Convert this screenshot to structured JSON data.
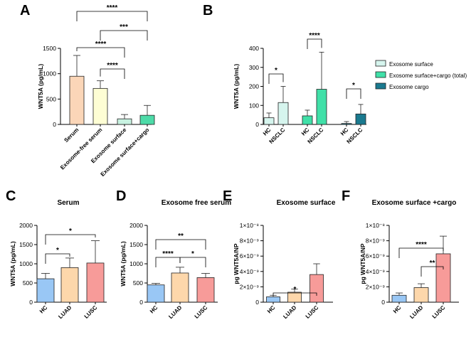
{
  "chart_data": [
    {
      "id": "A",
      "panel_label": "A",
      "type": "bar",
      "title": "",
      "ylabel": "WNT5A (pg/mL)",
      "ylim": [
        0,
        1500
      ],
      "yticks": [
        "0",
        "500",
        "1000",
        "1500"
      ],
      "categories": [
        "Serum",
        "Exosome-free serum",
        "Exosome surface",
        "Exosome surface+cargo"
      ],
      "values": [
        950,
        710,
        110,
        180
      ],
      "errors": [
        410,
        150,
        85,
        195
      ],
      "colors": [
        "#fbd6b8",
        "#fefed4",
        "#c8f2e1",
        "#4ddba8"
      ],
      "significance": [
        {
          "from": 0,
          "to": 3,
          "label": "****"
        },
        {
          "from": 1,
          "to": 3,
          "label": "***"
        },
        {
          "from": 0,
          "to": 2,
          "label": "****"
        },
        {
          "from": 1,
          "to": 2,
          "label": "****"
        }
      ]
    },
    {
      "id": "B",
      "panel_label": "B",
      "type": "bar",
      "title": "",
      "ylabel": "WNT5A (pg/mL)",
      "ylim": [
        0,
        400
      ],
      "yticks": [
        "0",
        "100",
        "200",
        "300",
        "400"
      ],
      "categories": [
        "HC",
        "NSCLC",
        "HC",
        "NSCLC",
        "HC",
        "NSCLC"
      ],
      "groups": [
        [
          0,
          1
        ],
        [
          2,
          3
        ],
        [
          4,
          5
        ]
      ],
      "values": [
        35,
        115,
        45,
        185,
        5,
        55
      ],
      "errors": [
        25,
        85,
        30,
        195,
        10,
        50
      ],
      "colors": [
        "#d6f5ee",
        "#d6f5ee",
        "#40e0a8",
        "#40e0a8",
        "#1a7a8f",
        "#1a7a8f"
      ],
      "legend": [
        {
          "label": "Exosome surface",
          "color": "#d6f5ee"
        },
        {
          "label": "Exosome surface+cargo (total)",
          "color": "#40e0a8"
        },
        {
          "label": "Exosome cargo",
          "color": "#1a7a8f"
        }
      ],
      "significance": [
        {
          "from": 0,
          "to": 1,
          "label": "*"
        },
        {
          "from": 2,
          "to": 3,
          "label": "****"
        },
        {
          "from": 4,
          "to": 5,
          "label": "*"
        }
      ]
    },
    {
      "id": "C",
      "panel_label": "C",
      "type": "bar",
      "title": "Serum",
      "ylabel": "WNT5A (pg/mL)",
      "ylim": [
        0,
        2000
      ],
      "yticks": [
        "0",
        "500",
        "1000",
        "1500",
        "2000"
      ],
      "categories": [
        "HC",
        "LUAD",
        "LUSC"
      ],
      "values": [
        610,
        900,
        1020
      ],
      "errors": [
        140,
        250,
        580
      ],
      "colors": [
        "#99c7f5",
        "#fdd7ab",
        "#f79b99"
      ],
      "significance": [
        {
          "from": 0,
          "to": 2,
          "label": "*"
        },
        {
          "from": 0,
          "to": 1,
          "label": "*"
        }
      ]
    },
    {
      "id": "D",
      "panel_label": "D",
      "type": "bar",
      "title": "Exosome free serum",
      "ylabel": "WNT5A (pg/mL)",
      "ylim": [
        0,
        2000
      ],
      "yticks": [
        "0",
        "500",
        "1000",
        "1500",
        "2000"
      ],
      "categories": [
        "HC",
        "LUAD",
        "LUSC"
      ],
      "values": [
        450,
        760,
        640
      ],
      "errors": [
        40,
        150,
        110
      ],
      "colors": [
        "#99c7f5",
        "#fdd7ab",
        "#f79b99"
      ],
      "significance": [
        {
          "from": 0,
          "to": 2,
          "label": "**"
        },
        {
          "from": 0,
          "to": 1,
          "label": "****"
        },
        {
          "from": 1,
          "to": 2,
          "label": "*"
        }
      ]
    },
    {
      "id": "E",
      "panel_label": "E",
      "type": "bar",
      "title": "Exosome surface",
      "ylabel": "pg WNT5A/NP",
      "ylim": [
        0,
        1e-08
      ],
      "yticks": [
        "0",
        "2×10⁻⁹",
        "4×10⁻⁹",
        "6×10⁻⁹",
        "8×10⁻⁹",
        "1×10⁻⁸"
      ],
      "categories": [
        "HC",
        "LUAD",
        "LUSC"
      ],
      "values": [
        7e-10,
        1.3e-09,
        3.6e-09
      ],
      "errors": [
        2e-10,
        4e-10,
        1.4e-09
      ],
      "colors": [
        "#99c7f5",
        "#fdd7ab",
        "#f79b99"
      ],
      "significance": [
        {
          "from": 0,
          "to": 2,
          "label": "*"
        }
      ]
    },
    {
      "id": "F",
      "panel_label": "F",
      "type": "bar",
      "title": "Exosome surface +cargo",
      "ylabel": "pg WNT5A/NP",
      "ylim": [
        0,
        1e-08
      ],
      "yticks": [
        "0",
        "2×10⁻⁹",
        "4×10⁻⁹",
        "6×10⁻⁹",
        "8×10⁻⁹",
        "1×10⁻⁸"
      ],
      "categories": [
        "HC",
        "LUAD",
        "LUSC"
      ],
      "values": [
        9e-10,
        1.9e-09,
        6.3e-09
      ],
      "errors": [
        3e-10,
        5e-10,
        2.3e-09
      ],
      "colors": [
        "#99c7f5",
        "#fdd7ab",
        "#f79b99"
      ],
      "significance": [
        {
          "from": 0,
          "to": 2,
          "label": "****"
        },
        {
          "from": 1,
          "to": 2,
          "label": "**"
        }
      ]
    }
  ]
}
